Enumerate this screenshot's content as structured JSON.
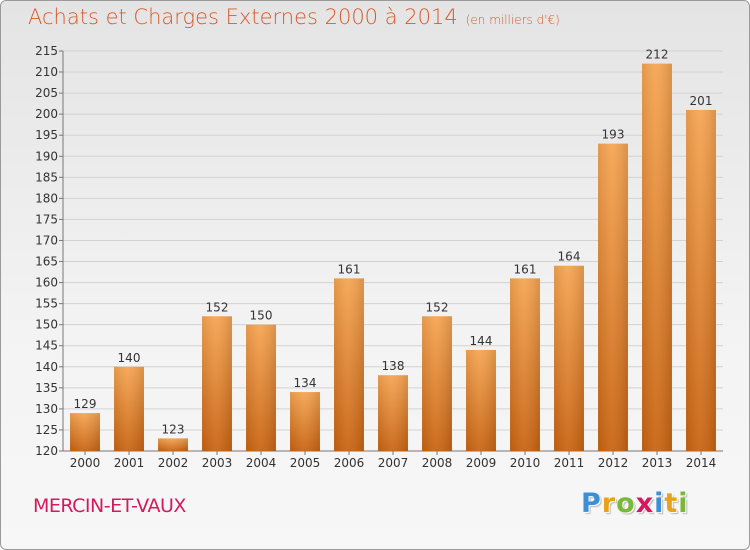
{
  "chart_data": {
    "type": "bar",
    "title": "Achats et Charges Externes 2000 à 2014",
    "title_unit": "(en milliers d'€)",
    "categories": [
      "2000",
      "2001",
      "2002",
      "2003",
      "2004",
      "2005",
      "2006",
      "2007",
      "2008",
      "2009",
      "2010",
      "2011",
      "2012",
      "2013",
      "2014"
    ],
    "values": [
      129,
      140,
      123,
      152,
      150,
      134,
      161,
      138,
      152,
      144,
      161,
      164,
      193,
      212,
      201
    ],
    "ylim": [
      120,
      215
    ],
    "yticks": [
      120,
      125,
      130,
      135,
      140,
      145,
      150,
      155,
      160,
      165,
      170,
      175,
      180,
      185,
      190,
      195,
      200,
      205,
      210,
      215
    ],
    "grid": true,
    "bar_color_top": "#f6a552",
    "bar_color_bottom": "#c96412"
  },
  "location": "MERCIN-ET-VAUX",
  "logo": {
    "letters": [
      "P",
      "r",
      "o",
      "x",
      "i",
      "t",
      "i"
    ],
    "colors": [
      "#3a8fd6",
      "#e8a21a",
      "#7ab83a",
      "#d4195e",
      "#3a8fd6",
      "#e8a21a",
      "#7ab83a"
    ]
  }
}
